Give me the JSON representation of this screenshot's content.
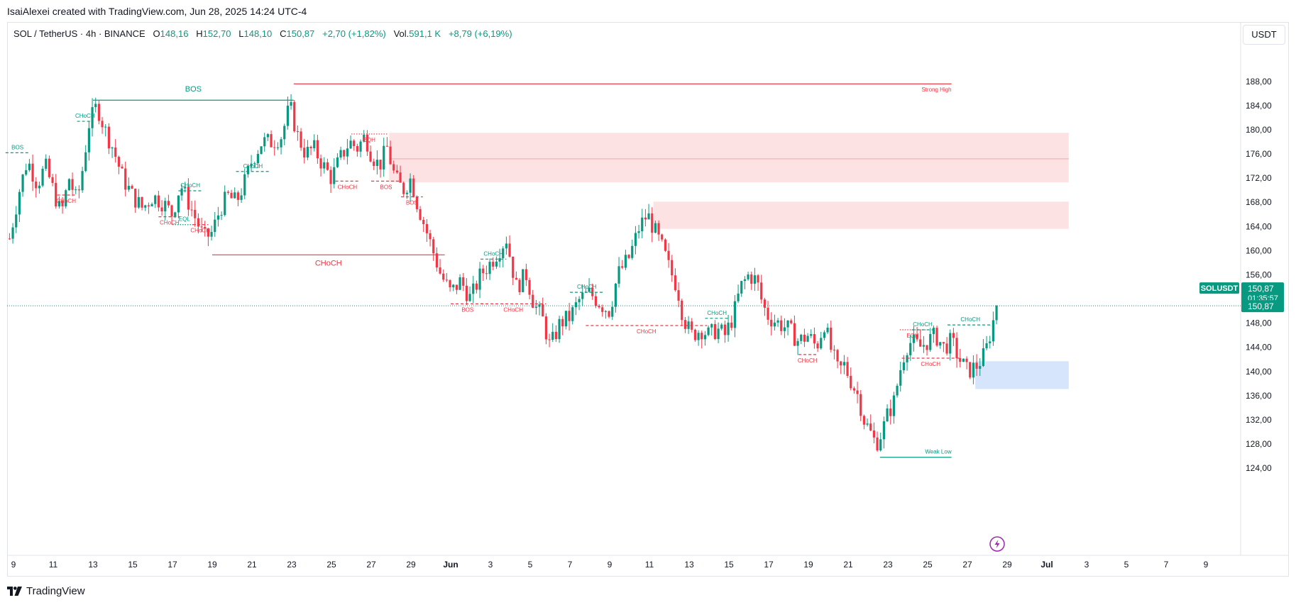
{
  "credit": "IsaiAlexei created with TradingView.com, Jun 28, 2025 14:24 UTC-4",
  "legend": {
    "symbol": "SOL / TetherUS · 4h · BINANCE",
    "open_label": "O",
    "open": "148,16",
    "high_label": "H",
    "high": "152,70",
    "low_label": "L",
    "low": "148,10",
    "close_label": "C",
    "close": "150,87",
    "change": "+2,70 (+1,82%)",
    "volume_label": "Vol.",
    "volume": "591,1 K",
    "volume_change": "+8,79 (+6,19%)"
  },
  "currency": "USDT",
  "footer": {
    "brand": "TradingView"
  },
  "colors": {
    "up": "#089981",
    "down": "#f23645",
    "supply": "#fde2e3",
    "demand": "#d6e4fc",
    "axis_text": "#131722"
  },
  "chart_data": {
    "type": "candlestick",
    "symbol": "SOL / TetherUS",
    "interval": "4h",
    "y_ticks": [
      "188,00",
      "184,00",
      "180,00",
      "176,00",
      "172,00",
      "168,00",
      "164,00",
      "160,00",
      "156,00",
      "152,00",
      "148,00",
      "144,00",
      "140,00",
      "136,00",
      "132,00",
      "128,00",
      "124,00"
    ],
    "y_tick_values": [
      188,
      184,
      180,
      176,
      172,
      168,
      164,
      160,
      156,
      152,
      148,
      144,
      140,
      136,
      132,
      128,
      124
    ],
    "ylim": [
      122.6,
      194.2
    ],
    "x_ticks": [
      "9",
      "11",
      "13",
      "15",
      "17",
      "19",
      "21",
      "23",
      "25",
      "27",
      "29",
      "Jun",
      "3",
      "5",
      "7",
      "9",
      "11",
      "13",
      "15",
      "17",
      "19",
      "21",
      "23",
      "25",
      "27",
      "29",
      "Jul",
      "3",
      "5",
      "7",
      "9"
    ],
    "last_price": {
      "label": "SOLUSDT",
      "value": "150,87",
      "countdown": "01:35:57",
      "value_num": 150.87
    },
    "path_days": [
      [
        8.8,
        162
      ],
      [
        9.3,
        170
      ],
      [
        9.7,
        175
      ],
      [
        10.2,
        171
      ],
      [
        10.6,
        174
      ],
      [
        11.0,
        170
      ],
      [
        11.4,
        166
      ],
      [
        11.8,
        172
      ],
      [
        12.2,
        168
      ],
      [
        12.5,
        174
      ],
      [
        12.8,
        181
      ],
      [
        13.2,
        184
      ],
      [
        13.6,
        180
      ],
      [
        14.0,
        177
      ],
      [
        14.5,
        172
      ],
      [
        15.0,
        169
      ],
      [
        15.5,
        167
      ],
      [
        16.0,
        169
      ],
      [
        16.5,
        168
      ],
      [
        17.0,
        166
      ],
      [
        17.4,
        171
      ],
      [
        17.8,
        168
      ],
      [
        18.2,
        165
      ],
      [
        18.6,
        162
      ],
      [
        19.0,
        163
      ],
      [
        19.4,
        167
      ],
      [
        19.8,
        169
      ],
      [
        20.2,
        168
      ],
      [
        20.6,
        171
      ],
      [
        21.0,
        175
      ],
      [
        21.5,
        178
      ],
      [
        22.0,
        178
      ],
      [
        22.5,
        179
      ],
      [
        22.9,
        184
      ],
      [
        23.3,
        179
      ],
      [
        23.7,
        176
      ],
      [
        24.1,
        177
      ],
      [
        24.6,
        174
      ],
      [
        25.0,
        172
      ],
      [
        25.4,
        175
      ],
      [
        25.9,
        178
      ],
      [
        26.3,
        177
      ],
      [
        26.7,
        179
      ],
      [
        27.0,
        176
      ],
      [
        27.4,
        174
      ],
      [
        27.8,
        177
      ],
      [
        28.2,
        172
      ],
      [
        28.6,
        170
      ],
      [
        29.0,
        172
      ],
      [
        29.3,
        168
      ],
      [
        29.7,
        164
      ],
      [
        30.1,
        160
      ],
      [
        30.5,
        156
      ],
      [
        31.0,
        153
      ],
      [
        31.5,
        155
      ],
      [
        32.0,
        152
      ],
      [
        32.5,
        156
      ],
      [
        33.0,
        158
      ],
      [
        33.4,
        160
      ],
      [
        33.8,
        162
      ],
      [
        34.3,
        154
      ],
      [
        34.8,
        156
      ],
      [
        35.2,
        151
      ],
      [
        35.6,
        149
      ],
      [
        36.0,
        144
      ],
      [
        36.5,
        148
      ],
      [
        37.0,
        149
      ],
      [
        37.5,
        152
      ],
      [
        38.0,
        153
      ],
      [
        38.6,
        151
      ],
      [
        39.0,
        150
      ],
      [
        39.4,
        156
      ],
      [
        40.0,
        159
      ],
      [
        40.5,
        164
      ],
      [
        40.9,
        166
      ],
      [
        41.3,
        163
      ],
      [
        41.7,
        160
      ],
      [
        42.0,
        157
      ],
      [
        42.4,
        154
      ],
      [
        42.7,
        149
      ],
      [
        43.1,
        146
      ],
      [
        43.6,
        147
      ],
      [
        44.0,
        146
      ],
      [
        44.4,
        147
      ],
      [
        44.8,
        146
      ],
      [
        45.2,
        149
      ],
      [
        45.6,
        154
      ],
      [
        46.0,
        156
      ],
      [
        46.4,
        155
      ],
      [
        46.7,
        151
      ],
      [
        47.0,
        149
      ],
      [
        47.5,
        148
      ],
      [
        48.0,
        147
      ],
      [
        48.5,
        145
      ],
      [
        49.0,
        146
      ],
      [
        49.4,
        144
      ],
      [
        49.8,
        148
      ],
      [
        50.1,
        144
      ],
      [
        50.5,
        140
      ],
      [
        50.8,
        141
      ],
      [
        51.2,
        138
      ],
      [
        51.5,
        136
      ],
      [
        51.8,
        132
      ],
      [
        52.1,
        130
      ],
      [
        52.4,
        128
      ],
      [
        52.7,
        130
      ],
      [
        53.0,
        133
      ],
      [
        53.3,
        135
      ],
      [
        53.6,
        140
      ],
      [
        53.9,
        144
      ],
      [
        54.2,
        145
      ],
      [
        54.6,
        144
      ],
      [
        55.0,
        145
      ],
      [
        55.4,
        146
      ],
      [
        55.8,
        144
      ],
      [
        56.2,
        145
      ],
      [
        56.6,
        142
      ],
      [
        57.0,
        140
      ],
      [
        57.5,
        141
      ],
      [
        57.9,
        143
      ],
      [
        58.2,
        147
      ],
      [
        58.5,
        151
      ]
    ],
    "annotations": [
      {
        "text": "BOS",
        "kind": "bull",
        "level": 176.2,
        "from": 8.6,
        "to": 9.8
      },
      {
        "text": "CHoCH",
        "kind": "bull",
        "level": 181.4,
        "from": 12.2,
        "to": 13.0
      },
      {
        "text": "BOS",
        "kind": "bull",
        "level": 184.9,
        "from": 13.0,
        "to": 23.1
      },
      {
        "text": "CHoCH",
        "kind": "bear",
        "level": 169.2,
        "from": 11.2,
        "to": 12.1
      },
      {
        "text": "CHoCH",
        "kind": "bear",
        "level": 165.6,
        "from": 16.3,
        "to": 17.4
      },
      {
        "text": "CHoCH",
        "kind": "bull",
        "level": 169.9,
        "from": 17.3,
        "to": 18.5
      },
      {
        "text": "EQL",
        "kind": "bull",
        "level": 164.3,
        "from": 17.0,
        "to": 18.2
      },
      {
        "text": "CHoCH",
        "kind": "bear",
        "level": 164.3,
        "from": 18.0,
        "to": 18.8
      },
      {
        "text": "CHoCH",
        "kind": "bull",
        "level": 173.1,
        "from": 20.2,
        "to": 21.9
      },
      {
        "text": "CHoCH",
        "kind": "bear",
        "level": 159.3,
        "from": 19.0,
        "to": 30.7
      },
      {
        "text": "Strong High",
        "kind": "bear",
        "level": 187.6,
        "from": 23.1,
        "to": 56.2
      },
      {
        "text": "EQH",
        "kind": "bear",
        "level": 179.3,
        "from": 26.0,
        "to": 27.8
      },
      {
        "text": "CHoCH",
        "kind": "bear",
        "level": 171.5,
        "from": 25.2,
        "to": 26.4
      },
      {
        "text": "BOS",
        "kind": "bear",
        "level": 171.5,
        "from": 27.0,
        "to": 28.5
      },
      {
        "text": "BOS",
        "kind": "bear",
        "level": 168.9,
        "from": 28.5,
        "to": 29.6
      },
      {
        "text": "CHoCH",
        "kind": "bull",
        "level": 158.6,
        "from": 32.5,
        "to": 33.8
      },
      {
        "text": "BOS",
        "kind": "bear",
        "level": 151.2,
        "from": 31.0,
        "to": 32.7
      },
      {
        "text": "CHoCH",
        "kind": "bear",
        "level": 151.2,
        "from": 32.5,
        "to": 35.8
      },
      {
        "text": "CHoCH",
        "kind": "bull",
        "level": 153.1,
        "from": 37.0,
        "to": 38.7
      },
      {
        "text": "CHoCH",
        "kind": "bear",
        "level": 147.6,
        "from": 37.8,
        "to": 43.9
      },
      {
        "text": "CHoCH",
        "kind": "bull",
        "level": 148.8,
        "from": 43.8,
        "to": 45.0
      },
      {
        "text": "CHoCH",
        "kind": "bear",
        "level": 142.8,
        "from": 48.5,
        "to": 49.4
      },
      {
        "text": "EQH",
        "kind": "bear",
        "level": 146.9,
        "from": 53.6,
        "to": 54.9
      },
      {
        "text": "CHoCH",
        "kind": "bull",
        "level": 146.9,
        "from": 54.2,
        "to": 55.3
      },
      {
        "text": "CHoCH",
        "kind": "bear",
        "level": 142.2,
        "from": 53.7,
        "to": 56.6
      },
      {
        "text": "CHoCH",
        "kind": "bull",
        "level": 147.7,
        "from": 56.0,
        "to": 58.3
      },
      {
        "text": "Weak Low",
        "kind": "bull",
        "level": 125.8,
        "from": 52.6,
        "to": 56.2
      }
    ],
    "zones": [
      {
        "kind": "supply",
        "top": 179.5,
        "bottom": 171.3,
        "from": 27.9,
        "to": 62.1,
        "mid": 175.2
      },
      {
        "kind": "supply",
        "top": 168.1,
        "bottom": 163.6,
        "from": 41.2,
        "to": 62.1
      },
      {
        "kind": "demand",
        "top": 141.7,
        "bottom": 137.1,
        "from": 57.4,
        "to": 62.1
      }
    ]
  }
}
